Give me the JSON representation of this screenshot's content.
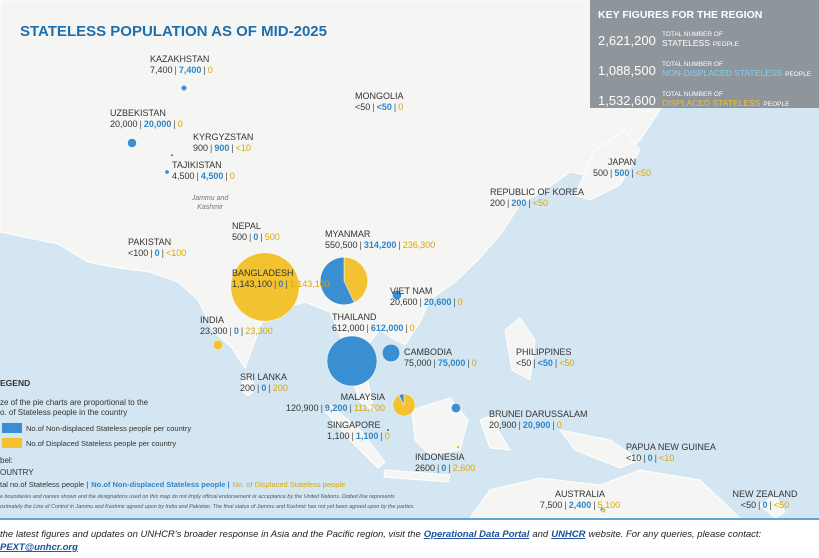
{
  "title": "STATELESS POPULATION AS OF MID-2025",
  "key_figures": {
    "title": "KEY FIGURES FOR THE REGION",
    "items": [
      {
        "value": "2,621,200",
        "label_top": "TOTAL NUMBER OF",
        "label_main": "STATELESS",
        "label_suffix": "PEOPLE"
      },
      {
        "value": "1,088,500",
        "label_top": "TOTAL NUMBER OF",
        "label_main": "NON-DISPLACED STATELESS",
        "label_suffix": "PEOPLE"
      },
      {
        "value": "1,532,600",
        "label_top": "TOTAL NUMBER OF",
        "label_main": "DISPLACED STATELESS",
        "label_suffix": "PEOPLE"
      }
    ]
  },
  "label_separator": "|",
  "countries": [
    {
      "name": "KAZAKHSTAN",
      "total": "7,400",
      "non_displaced": "7,400",
      "displaced": "0"
    },
    {
      "name": "UZBEKISTAN",
      "total": "20,000",
      "non_displaced": "20,000",
      "displaced": "0"
    },
    {
      "name": "KYRGYZSTAN",
      "total": "900",
      "non_displaced": "900",
      "displaced": "<10"
    },
    {
      "name": "TAJIKISTAN",
      "total": "4,500",
      "non_displaced": "4,500",
      "displaced": "0"
    },
    {
      "name": "MONGOLIA",
      "total": "<50",
      "non_displaced": "<50",
      "displaced": "0"
    },
    {
      "name": "NEPAL",
      "total": "500",
      "non_displaced": "0",
      "displaced": "500"
    },
    {
      "name": "PAKISTAN",
      "total": "<100",
      "non_displaced": "0",
      "displaced": "<100"
    },
    {
      "name": "MYANMAR",
      "total": "550,500",
      "non_displaced": "314,200",
      "displaced": "236,300"
    },
    {
      "name": "BANGLADESH",
      "total": "1,143,100",
      "non_displaced": "0",
      "displaced": "1,143,100"
    },
    {
      "name": "INDIA",
      "total": "23,300",
      "non_displaced": "0",
      "displaced": "23,300"
    },
    {
      "name": "VIET NAM",
      "total": "20,600",
      "non_displaced": "20,600",
      "displaced": "0"
    },
    {
      "name": "THAILAND",
      "total": "612,000",
      "non_displaced": "612,000",
      "displaced": "0"
    },
    {
      "name": "CAMBODIA",
      "total": "75,000",
      "non_displaced": "75,000",
      "displaced": "0"
    },
    {
      "name": "SRI LANKA",
      "total": "200",
      "non_displaced": "0",
      "displaced": "200"
    },
    {
      "name": "MALAYSIA",
      "total": "120,900",
      "non_displaced": "9,200",
      "displaced": "111,700"
    },
    {
      "name": "SINGAPORE",
      "total": "1,100",
      "non_displaced": "1,100",
      "displaced": "0"
    },
    {
      "name": "PHILIPPINES",
      "total": "<50",
      "non_displaced": "<50",
      "displaced": "<50"
    },
    {
      "name": "BRUNEI DARUSSALAM",
      "total": "20,900",
      "non_displaced": "20,900",
      "displaced": "0"
    },
    {
      "name": "INDONESIA",
      "total": "2600",
      "non_displaced": "0",
      "displaced": "2,600"
    },
    {
      "name": "REPUBLIC OF KOREA",
      "total": "200",
      "non_displaced": "200",
      "displaced": "<50"
    },
    {
      "name": "JAPAN",
      "total": "500",
      "non_displaced": "500",
      "displaced": "<50"
    },
    {
      "name": "PAPUA NEW GUINEA",
      "total": "<10",
      "non_displaced": "0",
      "displaced": "<10"
    },
    {
      "name": "AUSTRALIA",
      "total": "7,500",
      "non_displaced": "2,400",
      "displaced": "5,100"
    },
    {
      "name": "NEW ZEALAND",
      "total": "<50",
      "non_displaced": "0",
      "displaced": "<50"
    }
  ],
  "map_labels": [
    "Jammu and",
    "Kashmir"
  ],
  "legend": {
    "title": "EGEND",
    "note": [
      "ze of the pie charts are proportional to the",
      "o. of Stateless people in the country"
    ],
    "items": [
      "No.of Non-displaced Stateless people per country",
      "No.of Displaced Stateless people per country"
    ],
    "label_heading": "bel:",
    "label_country": "OUNTRY",
    "label_total": "tal no.of Stateless people |",
    "label_non_displaced": "No.of Non-displaced Stateless people |",
    "label_displaced": "No. of Displaced Stateless people",
    "disclaimer": [
      "e boundaries and names shown and the designations used on this map do not imply official endorsement or acceptance by the United Nations. Dotted line represents",
      "oximately the Line of Control in Jammu and Kashmir agreed upon by India and Pakistan. The final status of Jammu and Kashmir has not yet been agreed upon by the parties."
    ]
  },
  "footer": {
    "text1": "the latest figures and updates on UNHCR's broader response in Asia and the Pacific region, visit the",
    "link1": "Operational Data Portal",
    "text2": "and",
    "link2": "UNHCR",
    "text3": "website. For any queries, please contact:",
    "email": "PEXT@unhcr.org"
  }
}
